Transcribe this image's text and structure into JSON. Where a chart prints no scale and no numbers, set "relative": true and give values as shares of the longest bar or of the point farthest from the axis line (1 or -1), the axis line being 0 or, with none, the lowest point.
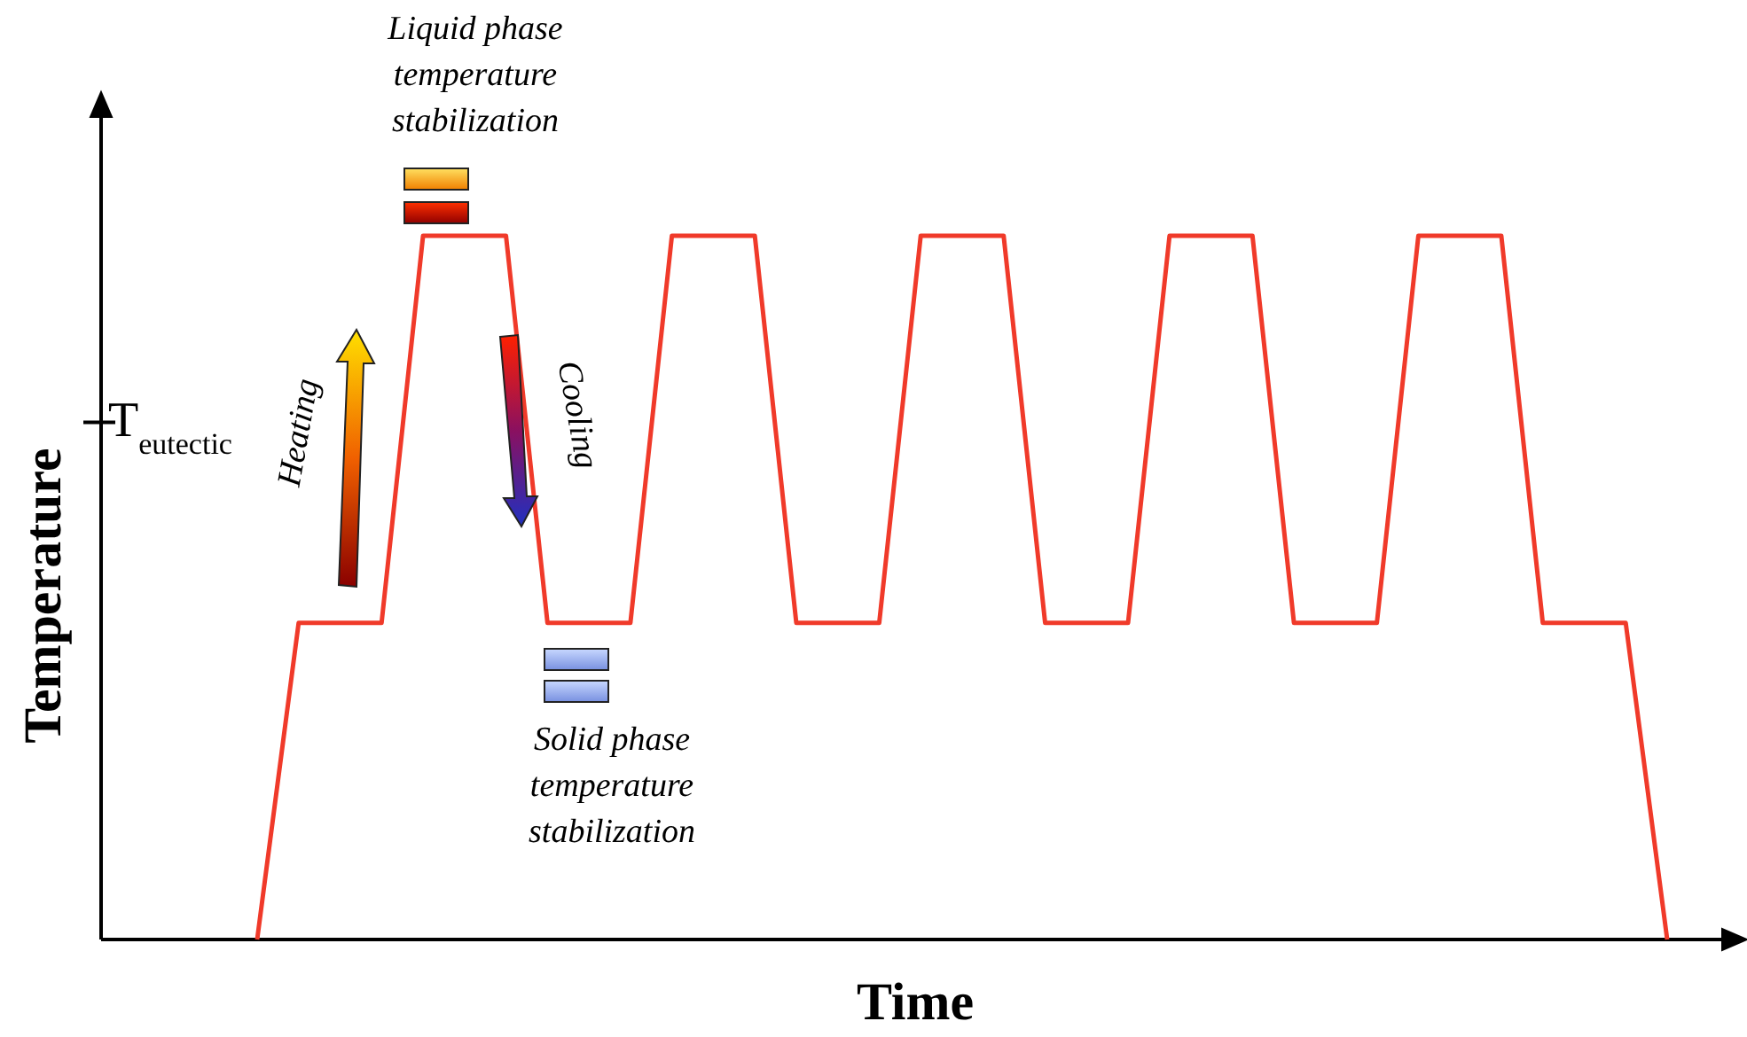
{
  "chart_data": {
    "type": "line",
    "relative": true,
    "xlabel": "Time",
    "ylabel": "Temperature",
    "line_style": "solid",
    "categories": [
      null,
      null,
      null,
      null,
      null,
      null,
      null,
      null,
      null,
      null,
      null,
      null,
      null,
      null,
      null,
      null,
      null,
      null,
      null,
      null,
      null,
      null,
      null,
      null,
      null,
      null,
      null,
      null,
      null,
      null,
      null,
      null,
      null,
      null,
      null
    ],
    "series": [
      {
        "color": "#f03a2a",
        "values": [
          0,
          0.45,
          0.45,
          0.45,
          1,
          1,
          1,
          0.45,
          0.45,
          0.45,
          1,
          1,
          1,
          0.45,
          0.45,
          0.45,
          1,
          1,
          1,
          0.45,
          0.45,
          0.45,
          1,
          1,
          1,
          0.45,
          0.45,
          0.45,
          1,
          1,
          1,
          0.45,
          0.45,
          0.45,
          0
        ]
      }
    ],
    "ref_lines": [
      {
        "axis": "y",
        "value": 0.735,
        "label": "T$_{eutectic}$"
      }
    ],
    "annotations": [
      "Liquid phase temperature stabilization",
      "Solid phase temperature stabilization",
      "Heating",
      "Cooling"
    ]
  }
}
